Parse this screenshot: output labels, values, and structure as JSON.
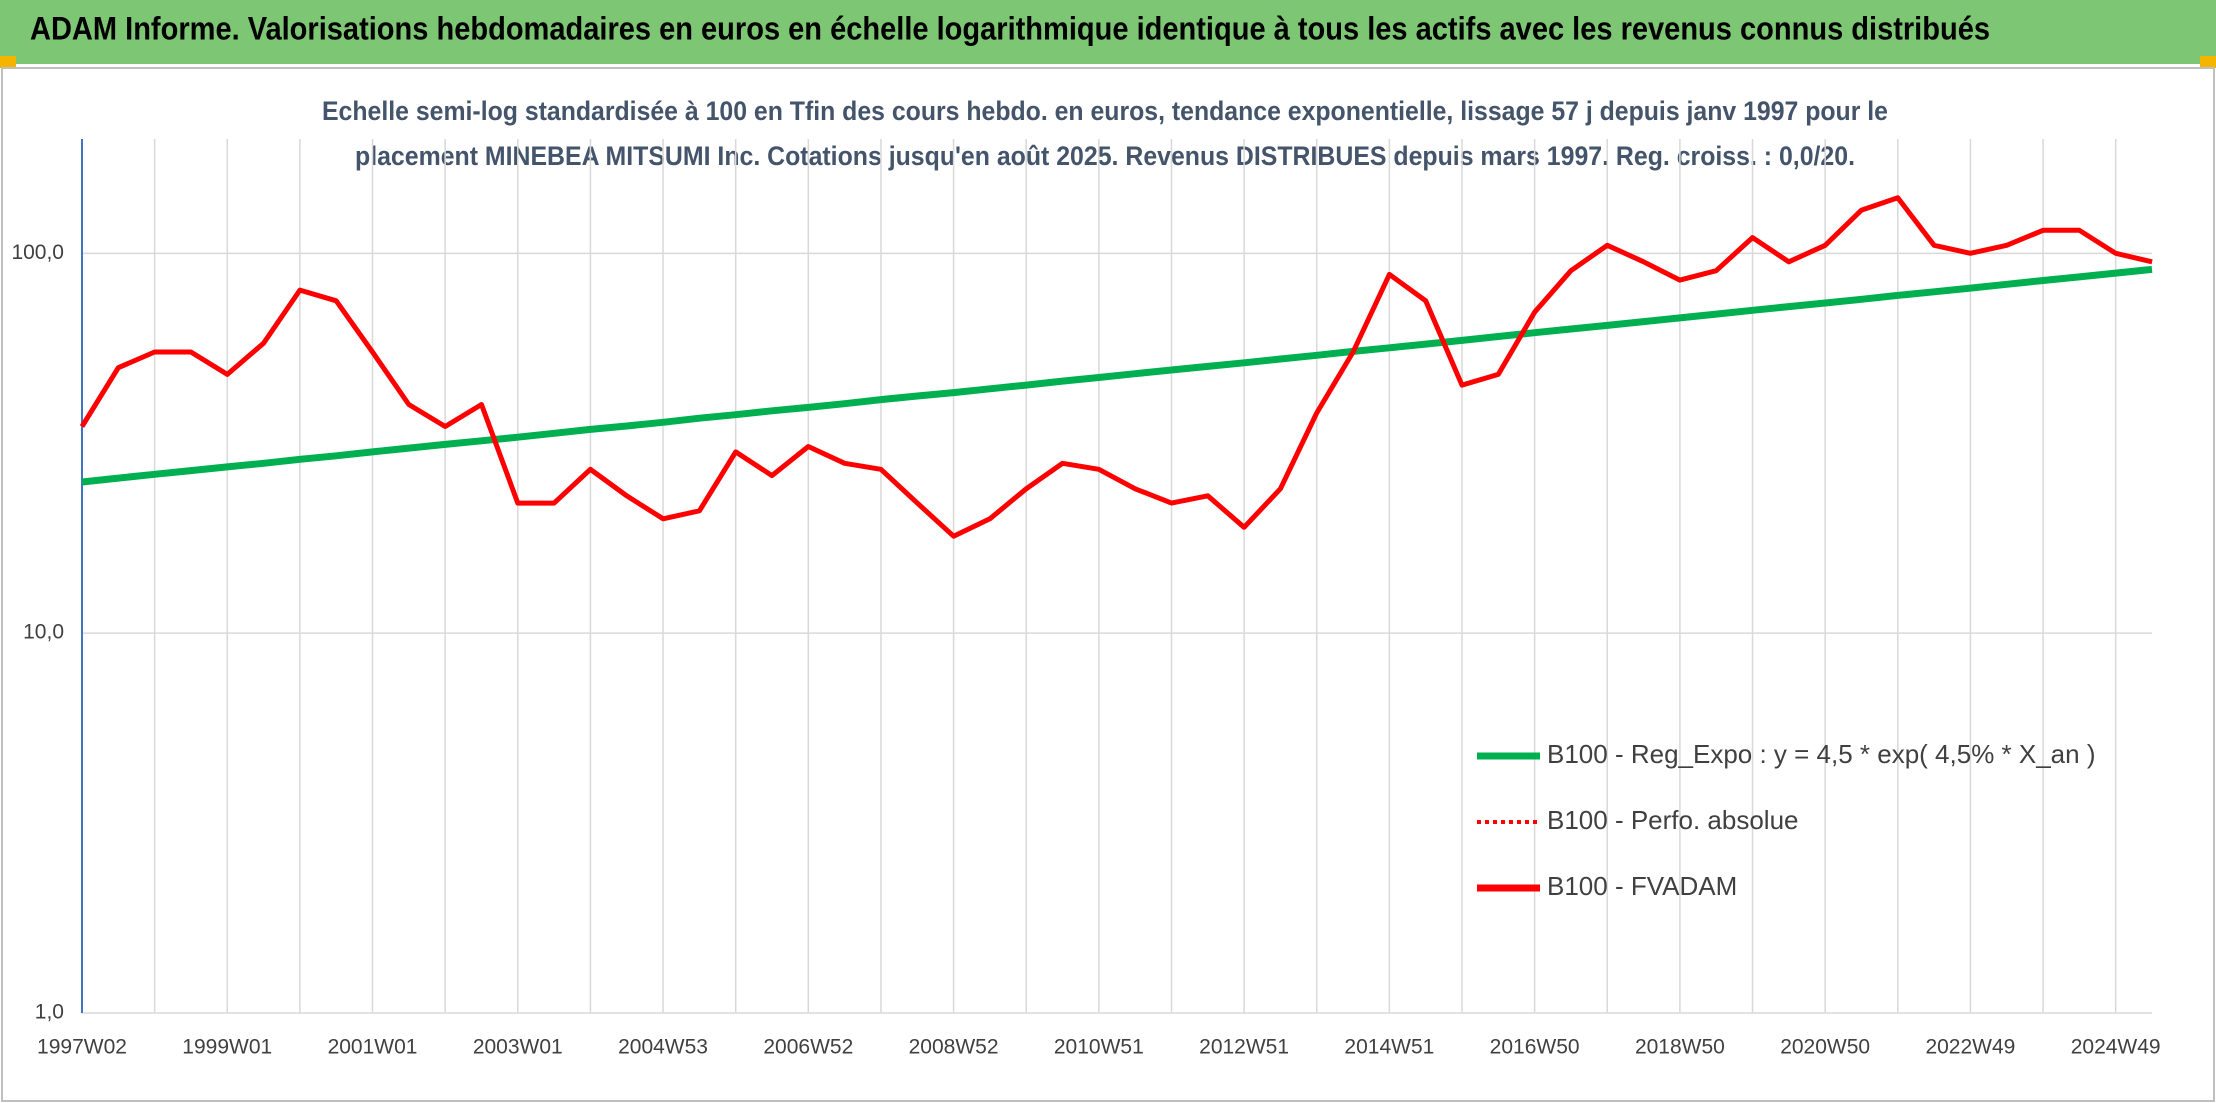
{
  "chart_data": {
    "type": "line",
    "title": "ADAM Informe. Valorisations hebdomadaires en euros en échelle logarithmique identique à tous les actifs avec les revenus connus distribués",
    "subtitle_lines": [
      "Echelle semi-log standardisée à 100 en Tfin des cours hebdo. en euros, tendance exponentielle, lissage 57 j depuis janv 1997 pour le",
      "placement MINEBEA MITSUMI Inc. Cotations jusqu'en août 2025. Revenus DISTRIBUES depuis mars 1997. Reg. croiss. : 0,0/20."
    ],
    "categories": [
      "1997W02",
      null,
      null,
      null,
      "1999W01",
      null,
      null,
      null,
      "2001W01",
      null,
      null,
      null,
      "2003W01",
      null,
      null,
      null,
      "2004W53",
      null,
      null,
      null,
      "2006W52",
      null,
      null,
      null,
      "2008W52",
      null,
      null,
      null,
      "2010W51",
      null,
      null,
      null,
      "2012W51",
      null,
      null,
      null,
      "2014W51",
      null,
      null,
      null,
      "2016W50",
      null,
      null,
      null,
      "2018W50",
      null,
      null,
      null,
      "2020W50",
      null,
      null,
      null,
      "2022W49",
      null,
      null,
      null,
      "2024W49",
      null
    ],
    "series": [
      {
        "name": "B100 - Reg_Expo : y = 4,5 * exp( 4,5% *  X_an )",
        "color": "#00b050",
        "dash": "solid",
        "values": [
          25.0,
          25.6,
          26.2,
          26.8,
          27.4,
          28.0,
          28.7,
          29.3,
          30.0,
          30.7,
          31.4,
          32.1,
          32.8,
          33.6,
          34.4,
          35.1,
          35.9,
          36.8,
          37.6,
          38.5,
          39.3,
          40.2,
          41.2,
          42.1,
          43.0,
          44.0,
          45.0,
          46.1,
          47.1,
          48.2,
          49.3,
          50.4,
          51.5,
          52.7,
          53.9,
          55.2,
          56.4,
          57.7,
          59.0,
          60.4,
          61.8,
          63.2,
          64.6,
          66.1,
          67.6,
          69.2,
          70.8,
          72.4,
          74.0,
          75.7,
          77.5,
          79.2,
          81.0,
          82.9,
          84.8,
          86.7,
          88.7,
          90.7
        ]
      },
      {
        "name": "B100 - Perfo. absolue",
        "color": "#ff0000",
        "dash": "dotted",
        "values": [
          35,
          50,
          55,
          55,
          48,
          58,
          80,
          75,
          55,
          40,
          35,
          40,
          22,
          22,
          27,
          23,
          20,
          21,
          30,
          26,
          31,
          28,
          27,
          22,
          18,
          20,
          24,
          28,
          27,
          24,
          22,
          23,
          19,
          24,
          38,
          55,
          88,
          75,
          45,
          48,
          70,
          90,
          105,
          95,
          85,
          90,
          110,
          95,
          105,
          130,
          140,
          105,
          100,
          105,
          115,
          115,
          100,
          95
        ]
      },
      {
        "name": "B100 - FVADAM",
        "color": "#ff0000",
        "dash": "solid",
        "values": [
          35,
          50,
          55,
          55,
          48,
          58,
          80,
          75,
          55,
          40,
          35,
          40,
          22,
          22,
          27,
          23,
          20,
          21,
          30,
          26,
          31,
          28,
          27,
          22,
          18,
          20,
          24,
          28,
          27,
          24,
          22,
          23,
          19,
          24,
          38,
          55,
          88,
          75,
          45,
          48,
          70,
          90,
          105,
          95,
          85,
          90,
          110,
          95,
          105,
          130,
          140,
          105,
          100,
          105,
          115,
          115,
          100,
          95
        ]
      }
    ],
    "ylog": true,
    "ylim": [
      1,
      200
    ],
    "yticks": [
      {
        "value": 1,
        "label": "1,0"
      },
      {
        "value": 10,
        "label": "10,0"
      },
      {
        "value": 100,
        "label": "100,0"
      }
    ],
    "grid": true
  }
}
